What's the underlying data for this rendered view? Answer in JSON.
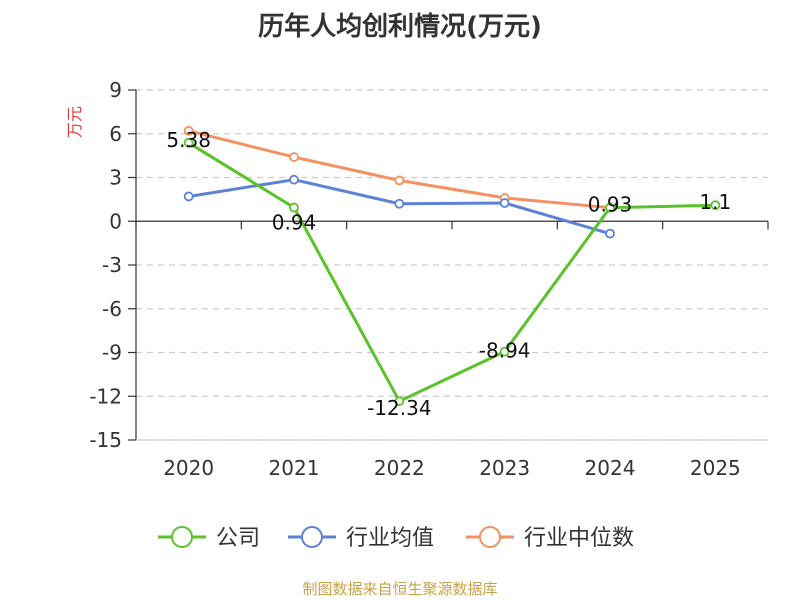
{
  "title": "历年人均创利情况(万元)",
  "source": "制图数据来自恒生聚源数据库",
  "colors": {
    "company": "#5cc22a",
    "industry_avg": "#5b82d6",
    "industry_median": "#f79060",
    "unit": "#e03c3c",
    "grid": "#cccccc",
    "axis": "#333333"
  },
  "chart_data": {
    "type": "line",
    "title": "历年人均创利情况(万元)",
    "ylabel": "万元",
    "xlabel": "",
    "categories": [
      "2020",
      "2021",
      "2022",
      "2023",
      "2024",
      "2025"
    ],
    "y_ticks": [
      "9",
      "6",
      "3",
      "0",
      "-3",
      "-6",
      "-9",
      "-12",
      "-15"
    ],
    "ylim": [
      -15,
      9
    ],
    "grid": true,
    "legend_position": "bottom",
    "series": [
      {
        "name": "公司",
        "color_key": "company",
        "values": [
          5.38,
          0.94,
          -12.34,
          -8.94,
          0.93,
          1.1
        ],
        "labels": [
          "5.38",
          "0.94",
          "-12.34",
          "-8.94",
          "0.93",
          "1.1"
        ]
      },
      {
        "name": "行业均值",
        "color_key": "industry_avg",
        "values": [
          1.7,
          2.85,
          1.2,
          1.25,
          -0.85,
          null
        ],
        "labels": null
      },
      {
        "name": "行业中位数",
        "color_key": "industry_median",
        "values": [
          6.2,
          4.4,
          2.8,
          1.6,
          0.93,
          null
        ],
        "labels": null
      }
    ]
  }
}
